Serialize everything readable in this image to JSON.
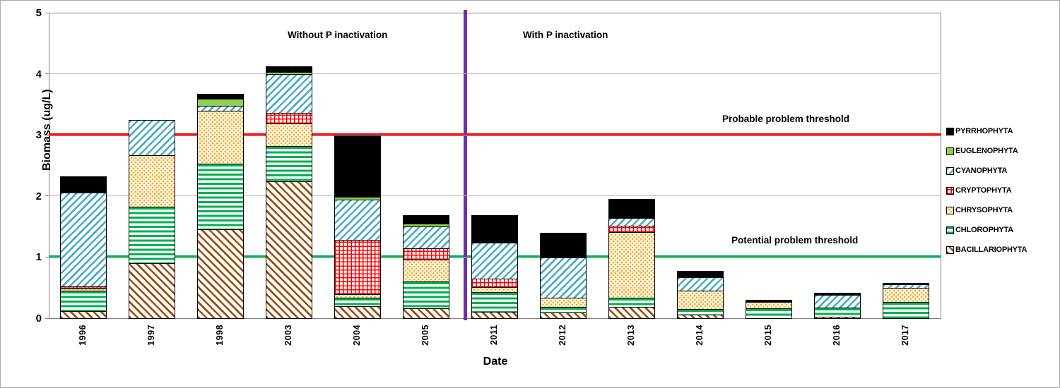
{
  "figure": {
    "ylabel": "Biomass (ug/L)",
    "xlabel": "Date",
    "annotations": {
      "left_region": "Without P inactivation",
      "right_region": "With P inactivation",
      "probable_threshold": "Probable problem threshold",
      "potential_threshold": "Potential problem threshold"
    }
  },
  "colors": {
    "probable_threshold_line": "#FF0000",
    "potential_threshold_line": "#00B050",
    "divider_line": "#7030A0",
    "gridline": "#BFBFBF",
    "axis": "#808080",
    "cyanophyta": "#4BACC6",
    "chlorophyta": "#00B050",
    "bacillariophyta": "#9A4D0D",
    "cryptophyta": "#FF0000",
    "chrysophyta_dot": "#EFAE3C",
    "euglenophyta": "#92D050",
    "pyrrhophyta": "#000000"
  },
  "chart_data": {
    "type": "bar",
    "stacked": true,
    "title": "",
    "xlabel": "Date",
    "ylabel": "Biomass (ug/L)",
    "ylim": [
      0,
      5
    ],
    "yticks": [
      0,
      1,
      2,
      3,
      4,
      5
    ],
    "grid": true,
    "legend_position": "right-outside",
    "categories": [
      "1996",
      "1997",
      "1998",
      "2003",
      "2004",
      "2005",
      "2011",
      "2012",
      "2013",
      "2014",
      "2015",
      "2016",
      "2017"
    ],
    "series": [
      {
        "name": "BACILLARIOPHYTA",
        "pattern": "brown-hatch",
        "values": [
          0.12,
          0.9,
          1.45,
          2.24,
          0.19,
          0.16,
          0.1,
          0.09,
          0.19,
          0.06,
          0,
          0.02,
          0
        ]
      },
      {
        "name": "CHLOROPHYTA",
        "pattern": "green-lines",
        "values": [
          0.33,
          0.92,
          1.08,
          0.58,
          0.14,
          0.44,
          0.33,
          0.1,
          0.14,
          0.09,
          0.16,
          0.15,
          0.26
        ]
      },
      {
        "name": "CHRYSOPHYTA",
        "pattern": "tan-dots",
        "values": [
          0.04,
          0.85,
          0.87,
          0.37,
          0.06,
          0.36,
          0.08,
          0.15,
          1.08,
          0.3,
          0.1,
          0,
          0.24
        ]
      },
      {
        "name": "CRYPTOPHYTA",
        "pattern": "red-grid",
        "values": [
          0.03,
          0,
          0,
          0.17,
          0.89,
          0.18,
          0.14,
          0,
          0.1,
          0,
          0,
          0,
          0
        ]
      },
      {
        "name": "CYANOPHYTA",
        "pattern": "cyan-hatch",
        "values": [
          1.53,
          0.58,
          0.08,
          0.64,
          0.66,
          0.36,
          0.58,
          0.65,
          0.13,
          0.22,
          0.02,
          0.21,
          0.05
        ]
      },
      {
        "name": "EUGLENOPHYTA",
        "pattern": "solid-green",
        "values": [
          0,
          0,
          0.11,
          0.03,
          0.05,
          0.05,
          0.02,
          0,
          0,
          0,
          0,
          0,
          0
        ]
      },
      {
        "name": "PYRRHOPHYTA",
        "pattern": "solid-black",
        "values": [
          0.27,
          0,
          0.08,
          0.09,
          1.0,
          0.14,
          0.44,
          0.41,
          0.31,
          0.1,
          0.02,
          0.03,
          0.03
        ]
      }
    ],
    "legend_top_to_bottom": [
      "PYRRHOPHYTA",
      "EUGLENOPHYTA",
      "CYANOPHYTA",
      "CRYPTOPHYTA",
      "CHRYSOPHYTA",
      "CHLOROPHYTA",
      "BACILLARIOPHYTA"
    ],
    "reference_lines": [
      {
        "orientation": "horizontal",
        "value": 3,
        "color": "#FF0000",
        "label": "Probable problem threshold"
      },
      {
        "orientation": "horizontal",
        "value": 1,
        "color": "#00B050",
        "label": "Potential problem threshold"
      },
      {
        "orientation": "vertical",
        "between_categories": [
          "2005",
          "2011"
        ],
        "color": "#7030A0",
        "label": "P inactivation divider"
      }
    ]
  }
}
